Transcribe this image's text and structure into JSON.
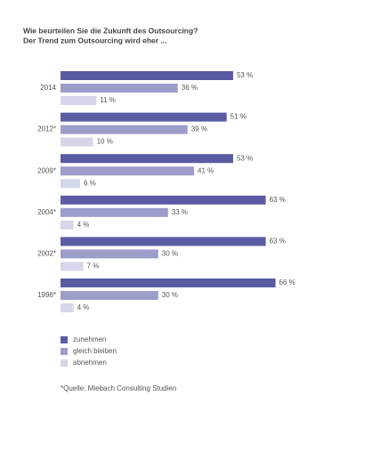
{
  "chart_data": {
    "type": "bar",
    "orientation": "horizontal",
    "title": "Wie beurteilen Sie die Zukunft des Outsourcing?",
    "subtitle": "Der Trend zum Outsourcing wird eher ...",
    "categories": [
      "2014",
      "2012*",
      "2009*",
      "2004*",
      "2002*",
      "1998*"
    ],
    "series": [
      {
        "name": "zunehmen",
        "color": "#5b5ba3",
        "values": [
          53,
          51,
          53,
          63,
          63,
          66
        ],
        "value_labels": [
          "53 %",
          "51 %",
          "53 %",
          "63 %",
          "63 %",
          "66 %"
        ]
      },
      {
        "name": "gleich bleiben",
        "color": "#9d9dca",
        "values": [
          36,
          39,
          41,
          33,
          30,
          30
        ],
        "value_labels": [
          "36 %",
          "39 %",
          "41 %",
          "33 %",
          "30 %",
          "30 %"
        ]
      },
      {
        "name": "abnehmen",
        "color": "#d6d6ea",
        "values": [
          11,
          10,
          6,
          4,
          7,
          4
        ],
        "value_labels": [
          "11 %",
          "10 %",
          "6 %",
          "4 %",
          "7 %",
          "4 %"
        ]
      }
    ],
    "footnote": "*Quelle: Miebach Consulting Studien"
  }
}
